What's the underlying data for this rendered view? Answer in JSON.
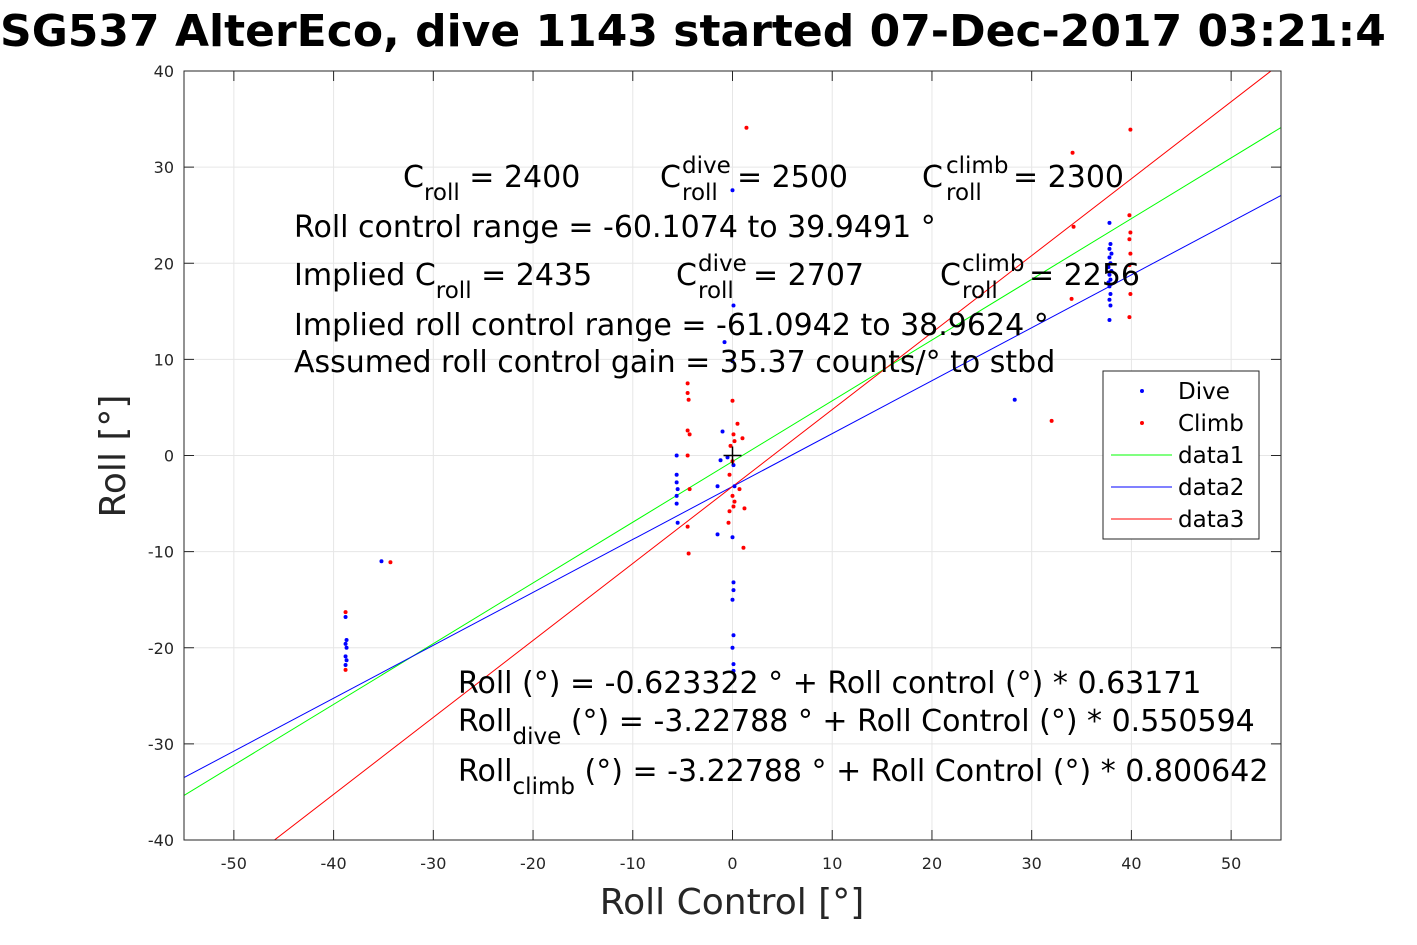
{
  "title": "SG537 AlterEco, dive 1143 started 07-Dec-2017 03:21:4",
  "chart_data": {
    "type": "scatter",
    "xlabel": "Roll Control [°]",
    "ylabel": "Roll [°]",
    "xlim": [
      -55,
      55
    ],
    "ylim": [
      -40,
      40
    ],
    "xticks": [
      -50,
      -40,
      -30,
      -20,
      -10,
      0,
      10,
      20,
      30,
      40,
      50
    ],
    "yticks": [
      -40,
      -30,
      -20,
      -10,
      0,
      10,
      20,
      30,
      40
    ],
    "grid": true,
    "legend_position": "right",
    "series": [
      {
        "name": "Dive",
        "kind": "points",
        "color": "#0000ff",
        "points": [
          [
            -38.8,
            -16.8
          ],
          [
            -38.7,
            -19.2
          ],
          [
            -38.8,
            -19.6
          ],
          [
            -38.7,
            -20.0
          ],
          [
            -38.8,
            -20.9
          ],
          [
            -38.7,
            -21.3
          ],
          [
            -38.8,
            -21.8
          ],
          [
            -35.2,
            -11.0
          ],
          [
            -5.6,
            0.0
          ],
          [
            -5.6,
            -2.0
          ],
          [
            -5.6,
            -2.8
          ],
          [
            -5.5,
            -3.5
          ],
          [
            -5.6,
            -4.2
          ],
          [
            -5.6,
            -5.0
          ],
          [
            -5.5,
            -7.0
          ],
          [
            -1.5,
            -8.2
          ],
          [
            -1.5,
            -3.2
          ],
          [
            -1.2,
            -0.5
          ],
          [
            -1.0,
            2.5
          ],
          [
            -0.8,
            11.8
          ],
          [
            -0.5,
            -0.2
          ],
          [
            0.0,
            27.6
          ],
          [
            0.1,
            15.6
          ],
          [
            0.0,
            9.8
          ],
          [
            0.0,
            -8.5
          ],
          [
            0.1,
            -13.2
          ],
          [
            0.1,
            -14.0
          ],
          [
            0.0,
            -15.0
          ],
          [
            0.1,
            -18.7
          ],
          [
            0.0,
            -20.0
          ],
          [
            0.1,
            -21.7
          ],
          [
            0.1,
            -22.4
          ],
          [
            0.2,
            -3.2
          ],
          [
            0.1,
            -1.0
          ],
          [
            28.3,
            5.8
          ],
          [
            37.8,
            24.2
          ],
          [
            37.9,
            22.0
          ],
          [
            37.8,
            21.5
          ],
          [
            38.0,
            21.0
          ],
          [
            37.8,
            20.6
          ],
          [
            37.9,
            20.0
          ],
          [
            37.7,
            19.6
          ],
          [
            38.0,
            19.2
          ],
          [
            37.8,
            18.8
          ],
          [
            37.9,
            18.3
          ],
          [
            37.7,
            18.0
          ],
          [
            37.8,
            17.6
          ],
          [
            37.9,
            16.8
          ],
          [
            37.8,
            16.2
          ],
          [
            37.9,
            15.6
          ],
          [
            37.8,
            14.1
          ]
        ]
      },
      {
        "name": "Climb",
        "kind": "points",
        "color": "#ff0000",
        "points": [
          [
            -38.8,
            -16.3
          ],
          [
            -38.8,
            -22.3
          ],
          [
            -34.3,
            -11.1
          ],
          [
            -4.5,
            7.5
          ],
          [
            -4.5,
            6.5
          ],
          [
            -4.4,
            5.8
          ],
          [
            -4.5,
            2.6
          ],
          [
            -4.3,
            2.2
          ],
          [
            -4.5,
            0.0
          ],
          [
            -4.3,
            -3.5
          ],
          [
            -4.5,
            -7.4
          ],
          [
            -4.4,
            -10.2
          ],
          [
            -0.2,
            1.0
          ],
          [
            0.0,
            5.7
          ],
          [
            0.1,
            2.2
          ],
          [
            0.2,
            1.5
          ],
          [
            0.5,
            3.3
          ],
          [
            0.0,
            -0.6
          ],
          [
            -0.3,
            -2.0
          ],
          [
            0.0,
            -4.2
          ],
          [
            0.2,
            -4.8
          ],
          [
            0.1,
            -5.3
          ],
          [
            -0.3,
            -5.8
          ],
          [
            -0.4,
            -7.0
          ],
          [
            0.7,
            -3.5
          ],
          [
            1.0,
            1.8
          ],
          [
            1.2,
            -5.5
          ],
          [
            1.1,
            -9.6
          ],
          [
            1.4,
            34.1
          ],
          [
            32.0,
            3.6
          ],
          [
            34.1,
            31.5
          ],
          [
            34.2,
            23.8
          ],
          [
            34.0,
            16.3
          ],
          [
            39.9,
            33.9
          ],
          [
            39.8,
            25.0
          ],
          [
            39.9,
            23.2
          ],
          [
            39.8,
            22.5
          ],
          [
            39.9,
            21.0
          ],
          [
            39.8,
            19.8
          ],
          [
            39.9,
            16.8
          ],
          [
            39.8,
            14.4
          ]
        ]
      },
      {
        "name": "data1",
        "kind": "line",
        "color": "#00ff00",
        "intercept": -0.623322,
        "slope": 0.63171
      },
      {
        "name": "data2",
        "kind": "line",
        "color": "#0000ff",
        "intercept": -3.22788,
        "slope": 0.550594
      },
      {
        "name": "data3",
        "kind": "line",
        "color": "#ff0000",
        "intercept": -3.22788,
        "slope": 0.800642
      }
    ],
    "origin_marker": [
      0,
      0
    ],
    "annotations": {
      "c_roll": "C",
      "c_roll_sub": "roll",
      "c_roll_val": " = 2400",
      "c_dive_sup": "dive",
      "c_dive_sub": "roll",
      "c_dive_val": " = 2500",
      "c_climb_sup": "climb",
      "c_climb_sub": "roll",
      "c_climb_val": " = 2300",
      "range": "Roll control range = -60.1074 to 39.9491 °",
      "implied_prefix": "Implied C",
      "implied_sub": "roll",
      "implied_val": " = 2435",
      "implied_dive_val": " = 2707",
      "implied_climb_val": " = 2256",
      "implied_range": "Implied roll control range = -61.0942 to 38.9624 °",
      "gain": "Assumed roll control gain = 35.37 counts/° to stbd",
      "fit1": "Roll (°) = -0.623322 ° + Roll control (°) * 0.63171",
      "fit2_prefix": "Roll",
      "fit2_sub": "dive",
      "fit2_rest": " (°) = -3.22788 ° + Roll Control (°) * 0.550594",
      "fit3_prefix": "Roll",
      "fit3_sub": "climb",
      "fit3_rest": " (°) = -3.22788 ° + Roll Control (°) * 0.800642"
    }
  }
}
